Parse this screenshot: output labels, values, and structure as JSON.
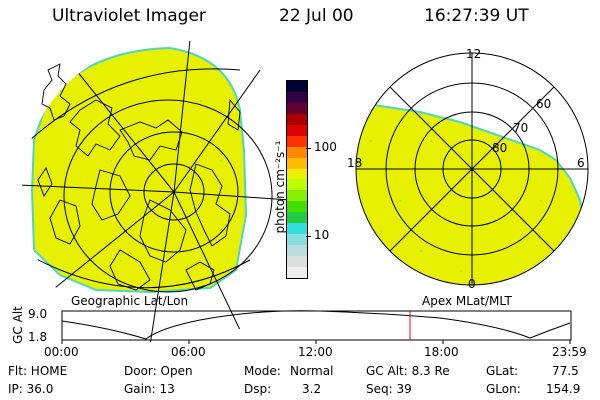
{
  "header": {
    "instrument": "Ultraviolet Imager",
    "date": "22 Jul 00",
    "time": "16:27:39 UT"
  },
  "left_panel": {
    "caption": "Geographic Lat/Lon"
  },
  "right_panel": {
    "caption": "Apex MLat/MLT",
    "mlt_labels": {
      "top": "12",
      "left": "18",
      "right": "6",
      "bottom": "0"
    },
    "mlat_labels": [
      "60",
      "70",
      "80"
    ]
  },
  "colorbar": {
    "unit_label": "photon cm⁻²s⁻¹",
    "ticks": [
      "100",
      "10"
    ],
    "colors": [
      "#000033",
      "#330044",
      "#660033",
      "#aa0000",
      "#dd0000",
      "#ff3300",
      "#ff8800",
      "#ffbb00",
      "#eeee00",
      "#bbff00",
      "#88ee00",
      "#44dd00",
      "#22cc44",
      "#33dddd",
      "#88dddd",
      "#bbdddd",
      "#dddddd",
      "#eeeeee"
    ]
  },
  "colors": {
    "aurora_yellow": "#e6f000",
    "aurora_speckle": "#a8e62a",
    "edge_cyan": "#4cd7c0",
    "cursor_red": "#ff0000"
  },
  "altitude_plot": {
    "ylabel": "GC Alt",
    "y_top": "9.0",
    "y_bottom": "1.8",
    "x_ticks": [
      "00:00",
      "06:00",
      "12:00",
      "18:00",
      "23:59"
    ]
  },
  "footer": {
    "filter": "Flt: HOME",
    "ip": "IP: 36.0",
    "door": "Door: Open",
    "gain": "Gain: 13",
    "mode_label": "Mode:",
    "mode_value": "Normal",
    "dsp_label": "Dsp:",
    "dsp_value": "3.2",
    "gc_alt": "GC Alt: 8.3 Re",
    "seq": "Seq: 39",
    "glat_label": "GLat:",
    "glat_value": "77.5",
    "glon_label": "GLon:",
    "glon_value": "154.9"
  }
}
